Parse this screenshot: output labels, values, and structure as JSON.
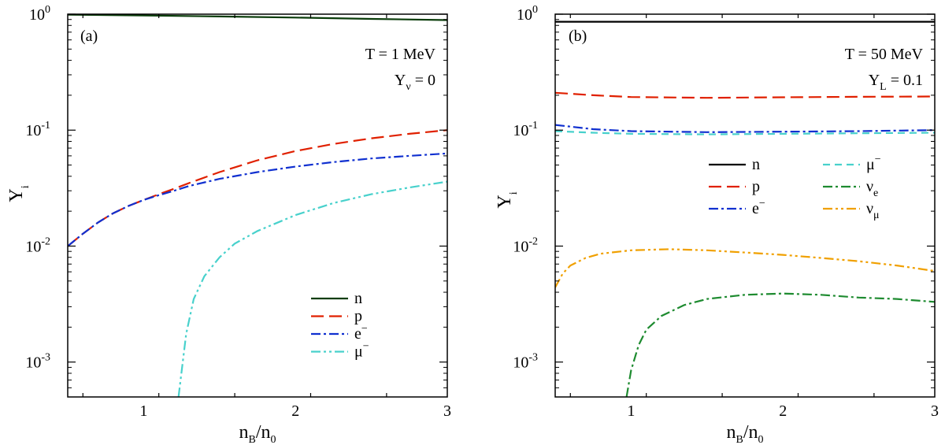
{
  "chart_data": [
    {
      "type": "line",
      "panel_label": "(a)",
      "annotations": [
        "T = 1 MeV",
        "Yν = 0"
      ],
      "xlabel": "nB/n0",
      "ylabel": "Yi",
      "xlim": [
        0.5,
        3
      ],
      "ylim": [
        0.0005,
        1
      ],
      "yscale": "log",
      "xticks": [
        1,
        2,
        3
      ],
      "yticks": [
        {
          "value": 0.001,
          "base": "10",
          "exp": "-3"
        },
        {
          "value": 0.01,
          "base": "10",
          "exp": "-2"
        },
        {
          "value": 0.1,
          "base": "10",
          "exp": "-1"
        },
        {
          "value": 1,
          "base": "10",
          "exp": "0"
        }
      ],
      "legend_position": "lower-right",
      "series": [
        {
          "name": "n",
          "color": "#0b3d0b",
          "dash": "solid",
          "x": [
            0.5,
            1,
            1.5,
            2,
            2.5,
            3
          ],
          "y": [
            0.99,
            0.975,
            0.955,
            0.935,
            0.91,
            0.89
          ]
        },
        {
          "name": "p",
          "color": "#e02000",
          "dash": "long",
          "x": [
            0.5,
            0.6,
            0.7,
            0.8,
            0.9,
            1.0,
            1.1,
            1.2,
            1.3,
            1.5,
            1.75,
            2.0,
            2.25,
            2.5,
            2.75,
            3.0
          ],
          "y": [
            0.01,
            0.0128,
            0.016,
            0.0192,
            0.0222,
            0.025,
            0.028,
            0.0312,
            0.035,
            0.0435,
            0.055,
            0.066,
            0.076,
            0.085,
            0.093,
            0.1
          ]
        },
        {
          "name": "e−",
          "color": "#1030d0",
          "dash": "dashdot",
          "x": [
            0.5,
            0.6,
            0.7,
            0.8,
            0.9,
            1.0,
            1.1,
            1.2,
            1.3,
            1.5,
            1.75,
            2.0,
            2.25,
            2.5,
            2.75,
            3.0
          ],
          "y": [
            0.01,
            0.0128,
            0.016,
            0.0192,
            0.0222,
            0.025,
            0.0275,
            0.03,
            0.033,
            0.038,
            0.0435,
            0.0485,
            0.053,
            0.057,
            0.06,
            0.063
          ]
        },
        {
          "name": "μ−",
          "color": "#48d1cc",
          "dash": "dashdotdot",
          "x": [
            1.23,
            1.28,
            1.33,
            1.4,
            1.5,
            1.6,
            1.75,
            2.0,
            2.25,
            2.5,
            2.75,
            3.0
          ],
          "y": [
            0.0005,
            0.00175,
            0.0035,
            0.0055,
            0.008,
            0.0105,
            0.0135,
            0.0185,
            0.0235,
            0.028,
            0.032,
            0.036
          ]
        }
      ]
    },
    {
      "type": "line",
      "panel_label": "(b)",
      "annotations": [
        "T = 50 MeV",
        "YL = 0.1"
      ],
      "xlabel": "nB/n0",
      "ylabel": "Yi",
      "xlim": [
        0.5,
        3
      ],
      "ylim": [
        0.0005,
        1
      ],
      "yscale": "log",
      "xticks": [
        1,
        2,
        3
      ],
      "yticks": [
        {
          "value": 0.001,
          "base": "10",
          "exp": "-3"
        },
        {
          "value": 0.01,
          "base": "10",
          "exp": "-2"
        },
        {
          "value": 0.1,
          "base": "10",
          "exp": "-1"
        },
        {
          "value": 1,
          "base": "10",
          "exp": "0"
        }
      ],
      "legend_position": "center-right",
      "series": [
        {
          "name": "n",
          "color": "#000000",
          "dash": "solid",
          "x": [
            0.5,
            1,
            1.5,
            2,
            2.5,
            3
          ],
          "y": [
            0.86,
            0.86,
            0.86,
            0.86,
            0.86,
            0.86
          ]
        },
        {
          "name": "p",
          "color": "#e02000",
          "dash": "long",
          "x": [
            0.5,
            0.75,
            1.0,
            1.5,
            2.0,
            2.5,
            3.0
          ],
          "y": [
            0.21,
            0.2,
            0.193,
            0.19,
            0.192,
            0.194,
            0.195
          ]
        },
        {
          "name": "e−",
          "color": "#1030d0",
          "dash": "dashdot",
          "x": [
            0.5,
            0.75,
            1.0,
            1.5,
            2.0,
            2.5,
            3.0
          ],
          "y": [
            0.111,
            0.102,
            0.098,
            0.096,
            0.097,
            0.098,
            0.1
          ]
        },
        {
          "name": "μ−",
          "color": "#48d1cc",
          "dash": "dash",
          "x": [
            0.5,
            0.75,
            1.0,
            1.5,
            2.0,
            2.5,
            3.0
          ],
          "y": [
            0.098,
            0.095,
            0.093,
            0.092,
            0.093,
            0.094,
            0.095
          ]
        },
        {
          "name": "νe",
          "color": "#1e8b30",
          "dash": "dashdot",
          "x": [
            0.97,
            1.0,
            1.05,
            1.1,
            1.2,
            1.35,
            1.5,
            1.75,
            2.0,
            2.25,
            2.5,
            2.75,
            3.0
          ],
          "y": [
            0.0005,
            0.00085,
            0.0014,
            0.0019,
            0.0025,
            0.0031,
            0.0035,
            0.0038,
            0.0039,
            0.0038,
            0.0036,
            0.0035,
            0.0033
          ]
        },
        {
          "name": "νμ",
          "color": "#f0a000",
          "dash": "dashdotdot",
          "x": [
            0.5,
            0.55,
            0.6,
            0.7,
            0.8,
            1.0,
            1.25,
            1.5,
            1.75,
            2.0,
            2.25,
            2.5,
            2.75,
            3.0
          ],
          "y": [
            0.0044,
            0.0058,
            0.0068,
            0.0079,
            0.0086,
            0.0092,
            0.0094,
            0.0092,
            0.0088,
            0.0084,
            0.0079,
            0.0074,
            0.0068,
            0.0061
          ]
        }
      ]
    }
  ]
}
